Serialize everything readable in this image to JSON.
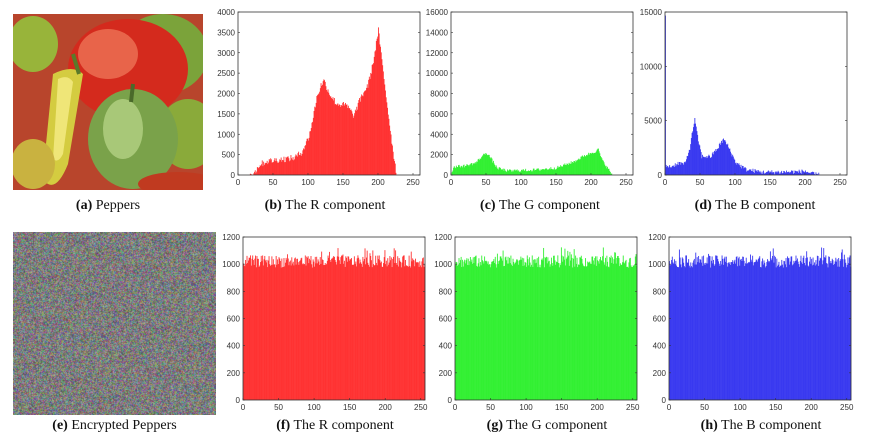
{
  "panels": {
    "a": {
      "letter": "(a)",
      "caption": "Peppers"
    },
    "b": {
      "letter": "(b)",
      "caption": "The R component"
    },
    "c": {
      "letter": "(c)",
      "caption": "The G component"
    },
    "d": {
      "letter": "(d)",
      "caption": "The B component"
    },
    "e": {
      "letter": "(e)",
      "caption": "Encrypted Peppers"
    },
    "f": {
      "letter": "(f)",
      "caption": "The R component"
    },
    "g": {
      "letter": "(g)",
      "caption": "The G component"
    },
    "h": {
      "letter": "(h)",
      "caption": "The B component"
    }
  },
  "chart_data": [
    {
      "id": "b",
      "type": "bar",
      "title": "The R component",
      "color": "#ff2020",
      "xlim": [
        0,
        260
      ],
      "ylim": [
        0,
        4000
      ],
      "xticks": [
        0,
        50,
        100,
        150,
        200,
        250
      ],
      "yticks": [
        0,
        500,
        1000,
        1500,
        2000,
        2500,
        3000,
        3500,
        4000
      ],
      "profile": [
        [
          0,
          0
        ],
        [
          15,
          0
        ],
        [
          25,
          100
        ],
        [
          30,
          250
        ],
        [
          40,
          330
        ],
        [
          60,
          380
        ],
        [
          80,
          420
        ],
        [
          90,
          550
        ],
        [
          100,
          900
        ],
        [
          105,
          1250
        ],
        [
          112,
          1900
        ],
        [
          118,
          2200
        ],
        [
          122,
          2320
        ],
        [
          130,
          2000
        ],
        [
          140,
          1750
        ],
        [
          155,
          1700
        ],
        [
          165,
          1450
        ],
        [
          175,
          1900
        ],
        [
          185,
          2200
        ],
        [
          192,
          2700
        ],
        [
          200,
          3550
        ],
        [
          205,
          2800
        ],
        [
          212,
          1800
        ],
        [
          220,
          700
        ],
        [
          226,
          0
        ],
        [
          255,
          0
        ]
      ],
      "noise": 80
    },
    {
      "id": "c",
      "type": "bar",
      "title": "The G component",
      "color": "#20ee20",
      "xlim": [
        0,
        260
      ],
      "ylim": [
        0,
        16000
      ],
      "xticks": [
        0,
        50,
        100,
        150,
        200,
        250
      ],
      "yticks": [
        0,
        2000,
        4000,
        6000,
        8000,
        10000,
        12000,
        14000,
        16000
      ],
      "profile": [
        [
          0,
          0
        ],
        [
          3,
          800
        ],
        [
          20,
          900
        ],
        [
          35,
          1200
        ],
        [
          45,
          1900
        ],
        [
          50,
          2200
        ],
        [
          55,
          1800
        ],
        [
          65,
          700
        ],
        [
          80,
          400
        ],
        [
          120,
          500
        ],
        [
          150,
          700
        ],
        [
          175,
          1300
        ],
        [
          190,
          1900
        ],
        [
          205,
          2300
        ],
        [
          210,
          2500
        ],
        [
          215,
          1500
        ],
        [
          222,
          800
        ],
        [
          230,
          0
        ],
        [
          255,
          0
        ]
      ],
      "noise": 150
    },
    {
      "id": "d",
      "type": "bar",
      "title": "The B component",
      "color": "#2828ee",
      "xlim": [
        0,
        260
      ],
      "ylim": [
        0,
        15000
      ],
      "xticks": [
        0,
        50,
        100,
        150,
        200,
        250
      ],
      "yticks": [
        0,
        5000,
        10000,
        15000
      ],
      "profile": [
        [
          0,
          14500
        ],
        [
          1,
          800
        ],
        [
          10,
          800
        ],
        [
          18,
          1100
        ],
        [
          28,
          1000
        ],
        [
          35,
          2500
        ],
        [
          40,
          4500
        ],
        [
          42,
          5100
        ],
        [
          46,
          3500
        ],
        [
          52,
          1700
        ],
        [
          65,
          1700
        ],
        [
          75,
          2500
        ],
        [
          83,
          3300
        ],
        [
          90,
          2600
        ],
        [
          100,
          1200
        ],
        [
          115,
          500
        ],
        [
          140,
          250
        ],
        [
          190,
          300
        ],
        [
          200,
          350
        ],
        [
          210,
          100
        ],
        [
          222,
          0
        ],
        [
          255,
          0
        ]
      ],
      "noise": 200
    },
    {
      "id": "f",
      "type": "bar",
      "title": "The R component",
      "color": "#ff2020",
      "xlim": [
        0,
        256
      ],
      "ylim": [
        0,
        1200
      ],
      "xticks": [
        0,
        50,
        100,
        150,
        200,
        250
      ],
      "yticks": [
        0,
        200,
        400,
        600,
        800,
        1000,
        1200
      ],
      "profile": [
        [
          0,
          1020
        ],
        [
          255,
          1020
        ]
      ],
      "noise": 45
    },
    {
      "id": "g",
      "type": "bar",
      "title": "The G component",
      "color": "#20ee20",
      "xlim": [
        0,
        256
      ],
      "ylim": [
        0,
        1200
      ],
      "xticks": [
        0,
        50,
        100,
        150,
        200,
        250
      ],
      "yticks": [
        0,
        200,
        400,
        600,
        800,
        1000,
        1200
      ],
      "profile": [
        [
          0,
          1020
        ],
        [
          255,
          1020
        ]
      ],
      "noise": 45
    },
    {
      "id": "h",
      "type": "bar",
      "title": "The B component",
      "color": "#2828ee",
      "xlim": [
        0,
        256
      ],
      "ylim": [
        0,
        1200
      ],
      "xticks": [
        0,
        50,
        100,
        150,
        200,
        250
      ],
      "yticks": [
        0,
        200,
        400,
        600,
        800,
        1000,
        1200
      ],
      "profile": [
        [
          0,
          1020
        ],
        [
          255,
          1020
        ]
      ],
      "noise": 45
    }
  ]
}
